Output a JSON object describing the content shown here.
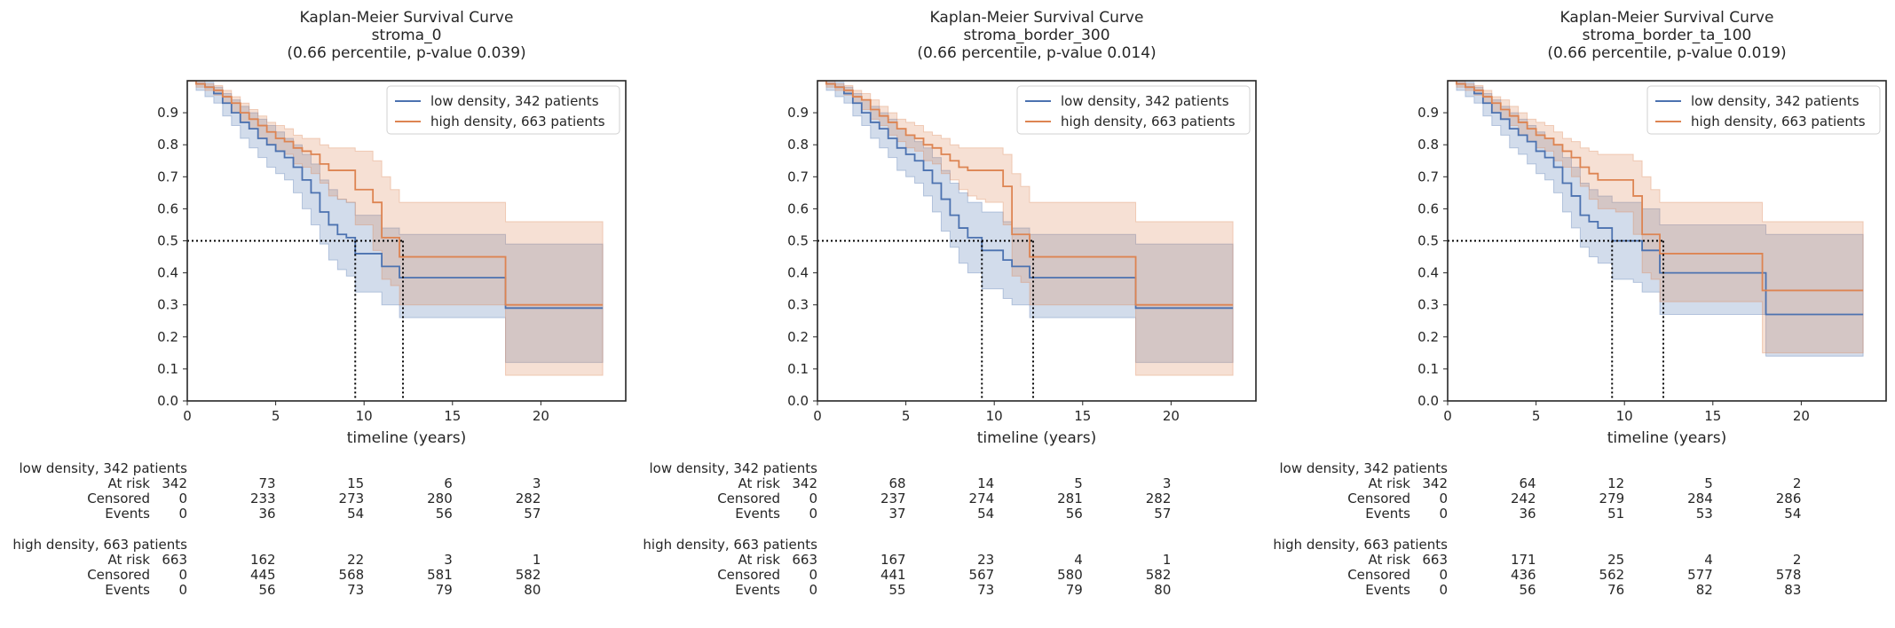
{
  "chart_data": [
    {
      "type": "line",
      "title_lines": [
        "Kaplan-Meier Survival Curve",
        "stroma_0",
        "(0.66 percentile, p-value 0.039)"
      ],
      "xlabel": "timeline (years)",
      "ylabel": "",
      "xlim": [
        0,
        24.8
      ],
      "ylim": [
        0,
        1.0
      ],
      "xticks": [
        0,
        5,
        10,
        15,
        20
      ],
      "yticks": [
        0.0,
        0.1,
        0.2,
        0.3,
        0.4,
        0.5,
        0.6,
        0.7,
        0.8,
        0.9
      ],
      "legend_position": "top-right",
      "median_lines": [
        9.5,
        12.2
      ],
      "series": [
        {
          "name": "low density, 342 patients",
          "color": "#4c72b0",
          "x": [
            0,
            0.5,
            1.0,
            1.5,
            2.0,
            2.5,
            3.0,
            3.5,
            4.0,
            4.5,
            5.0,
            5.5,
            6.0,
            6.5,
            7.0,
            7.5,
            8.0,
            8.5,
            9.0,
            9.5,
            11.0,
            12.0,
            18.0,
            23.5
          ],
          "y": [
            1.0,
            0.99,
            0.98,
            0.96,
            0.93,
            0.9,
            0.87,
            0.85,
            0.82,
            0.8,
            0.78,
            0.76,
            0.73,
            0.69,
            0.65,
            0.59,
            0.55,
            0.52,
            0.51,
            0.46,
            0.42,
            0.385,
            0.29,
            0.29
          ],
          "upper": [
            1.0,
            1.0,
            0.995,
            0.98,
            0.96,
            0.94,
            0.92,
            0.9,
            0.88,
            0.86,
            0.84,
            0.82,
            0.8,
            0.77,
            0.74,
            0.69,
            0.66,
            0.63,
            0.62,
            0.58,
            0.54,
            0.52,
            0.49,
            0.49
          ],
          "lower": [
            1.0,
            0.97,
            0.95,
            0.93,
            0.89,
            0.86,
            0.82,
            0.79,
            0.76,
            0.73,
            0.71,
            0.69,
            0.65,
            0.6,
            0.55,
            0.49,
            0.44,
            0.41,
            0.39,
            0.34,
            0.3,
            0.26,
            0.12,
            0.12
          ]
        },
        {
          "name": "high density, 663 patients",
          "color": "#dd8452",
          "x": [
            0,
            0.5,
            1.0,
            1.5,
            2.0,
            2.5,
            3.0,
            3.5,
            4.0,
            4.5,
            5.0,
            5.5,
            6.0,
            6.5,
            7.0,
            7.5,
            8.0,
            8.5,
            9.0,
            9.5,
            10.5,
            11.0,
            11.5,
            12.0,
            18.0,
            23.5
          ],
          "y": [
            1.0,
            0.99,
            0.98,
            0.97,
            0.95,
            0.93,
            0.9,
            0.88,
            0.86,
            0.84,
            0.82,
            0.81,
            0.79,
            0.78,
            0.77,
            0.74,
            0.72,
            0.72,
            0.72,
            0.66,
            0.62,
            0.51,
            0.51,
            0.45,
            0.3,
            0.3
          ],
          "upper": [
            1.0,
            1.0,
            0.99,
            0.985,
            0.97,
            0.95,
            0.93,
            0.91,
            0.89,
            0.87,
            0.86,
            0.85,
            0.83,
            0.82,
            0.82,
            0.8,
            0.79,
            0.79,
            0.79,
            0.78,
            0.75,
            0.7,
            0.66,
            0.62,
            0.56,
            0.56
          ],
          "lower": [
            1.0,
            0.98,
            0.97,
            0.955,
            0.93,
            0.9,
            0.87,
            0.85,
            0.82,
            0.8,
            0.78,
            0.77,
            0.74,
            0.73,
            0.71,
            0.68,
            0.64,
            0.63,
            0.62,
            0.55,
            0.47,
            0.38,
            0.36,
            0.3,
            0.08,
            0.08
          ]
        }
      ],
      "at_risk_table": {
        "times": [
          0,
          5,
          10,
          15,
          20
        ],
        "groups": [
          {
            "name": "low density, 342 patients",
            "rows": [
              {
                "label": "At risk",
                "values": [
                  "342",
                  "73",
                  "15",
                  "6",
                  "3"
                ]
              },
              {
                "label": "Censored",
                "values": [
                  "0",
                  "233",
                  "273",
                  "280",
                  "282"
                ]
              },
              {
                "label": "Events",
                "values": [
                  "0",
                  "36",
                  "54",
                  "56",
                  "57"
                ]
              }
            ]
          },
          {
            "name": "high density, 663 patients",
            "rows": [
              {
                "label": "At risk",
                "values": [
                  "663",
                  "162",
                  "22",
                  "3",
                  "1"
                ]
              },
              {
                "label": "Censored",
                "values": [
                  "0",
                  "445",
                  "568",
                  "581",
                  "582"
                ]
              },
              {
                "label": "Events",
                "values": [
                  "0",
                  "56",
                  "73",
                  "79",
                  "80"
                ]
              }
            ]
          }
        ]
      }
    },
    {
      "type": "line",
      "title_lines": [
        "Kaplan-Meier Survival Curve",
        "stroma_border_300",
        "(0.66 percentile, p-value 0.014)"
      ],
      "xlabel": "timeline (years)",
      "ylabel": "",
      "xlim": [
        0,
        24.8
      ],
      "ylim": [
        0,
        1.0
      ],
      "xticks": [
        0,
        5,
        10,
        15,
        20
      ],
      "yticks": [
        0.0,
        0.1,
        0.2,
        0.3,
        0.4,
        0.5,
        0.6,
        0.7,
        0.8,
        0.9
      ],
      "legend_position": "top-right",
      "median_lines": [
        9.3,
        12.2
      ],
      "series": [
        {
          "name": "low density, 342 patients",
          "color": "#4c72b0",
          "x": [
            0,
            0.5,
            1.0,
            1.5,
            2.0,
            2.5,
            3.0,
            3.5,
            4.0,
            4.5,
            5.0,
            5.5,
            6.0,
            6.5,
            7.0,
            7.5,
            8.0,
            8.5,
            9.3,
            10.5,
            11.0,
            12.0,
            18.0,
            23.5
          ],
          "y": [
            1.0,
            0.99,
            0.98,
            0.96,
            0.93,
            0.9,
            0.87,
            0.85,
            0.82,
            0.79,
            0.77,
            0.75,
            0.72,
            0.68,
            0.63,
            0.58,
            0.54,
            0.51,
            0.47,
            0.44,
            0.42,
            0.385,
            0.29,
            0.29
          ],
          "upper": [
            1.0,
            1.0,
            0.995,
            0.98,
            0.96,
            0.94,
            0.92,
            0.9,
            0.88,
            0.85,
            0.83,
            0.81,
            0.79,
            0.76,
            0.72,
            0.68,
            0.65,
            0.62,
            0.59,
            0.56,
            0.54,
            0.52,
            0.49,
            0.49
          ],
          "lower": [
            1.0,
            0.97,
            0.95,
            0.93,
            0.89,
            0.86,
            0.82,
            0.79,
            0.76,
            0.72,
            0.7,
            0.68,
            0.64,
            0.59,
            0.53,
            0.48,
            0.43,
            0.4,
            0.35,
            0.32,
            0.3,
            0.26,
            0.12,
            0.12
          ]
        },
        {
          "name": "high density, 663 patients",
          "color": "#dd8452",
          "x": [
            0,
            0.5,
            1.0,
            1.5,
            2.0,
            2.5,
            3.0,
            3.5,
            4.0,
            4.5,
            5.0,
            5.5,
            6.0,
            6.5,
            7.0,
            7.5,
            8.0,
            8.5,
            9.0,
            9.5,
            10.5,
            11.0,
            11.5,
            12.0,
            18.0,
            23.5
          ],
          "y": [
            1.0,
            0.99,
            0.98,
            0.97,
            0.95,
            0.94,
            0.91,
            0.89,
            0.87,
            0.85,
            0.83,
            0.82,
            0.8,
            0.79,
            0.77,
            0.75,
            0.73,
            0.72,
            0.72,
            0.72,
            0.67,
            0.52,
            0.52,
            0.45,
            0.3,
            0.3
          ],
          "upper": [
            1.0,
            1.0,
            0.99,
            0.985,
            0.97,
            0.96,
            0.94,
            0.92,
            0.9,
            0.88,
            0.87,
            0.86,
            0.84,
            0.83,
            0.82,
            0.8,
            0.79,
            0.79,
            0.79,
            0.79,
            0.77,
            0.71,
            0.67,
            0.62,
            0.56,
            0.56
          ],
          "lower": [
            1.0,
            0.98,
            0.97,
            0.955,
            0.93,
            0.91,
            0.88,
            0.86,
            0.83,
            0.81,
            0.79,
            0.78,
            0.75,
            0.74,
            0.71,
            0.69,
            0.66,
            0.64,
            0.63,
            0.62,
            0.55,
            0.39,
            0.37,
            0.3,
            0.08,
            0.08
          ]
        }
      ],
      "at_risk_table": {
        "times": [
          0,
          5,
          10,
          15,
          20
        ],
        "groups": [
          {
            "name": "low density, 342 patients",
            "rows": [
              {
                "label": "At risk",
                "values": [
                  "342",
                  "68",
                  "14",
                  "5",
                  "3"
                ]
              },
              {
                "label": "Censored",
                "values": [
                  "0",
                  "237",
                  "274",
                  "281",
                  "282"
                ]
              },
              {
                "label": "Events",
                "values": [
                  "0",
                  "37",
                  "54",
                  "56",
                  "57"
                ]
              }
            ]
          },
          {
            "name": "high density, 663 patients",
            "rows": [
              {
                "label": "At risk",
                "values": [
                  "663",
                  "167",
                  "23",
                  "4",
                  "1"
                ]
              },
              {
                "label": "Censored",
                "values": [
                  "0",
                  "441",
                  "567",
                  "580",
                  "582"
                ]
              },
              {
                "label": "Events",
                "values": [
                  "0",
                  "55",
                  "73",
                  "79",
                  "80"
                ]
              }
            ]
          }
        ]
      }
    },
    {
      "type": "line",
      "title_lines": [
        "Kaplan-Meier Survival Curve",
        "stroma_border_ta_100",
        "(0.66 percentile, p-value 0.019)"
      ],
      "xlabel": "timeline (years)",
      "ylabel": "",
      "xlim": [
        0,
        24.8
      ],
      "ylim": [
        0,
        1.0
      ],
      "xticks": [
        0,
        5,
        10,
        15,
        20
      ],
      "yticks": [
        0.0,
        0.1,
        0.2,
        0.3,
        0.4,
        0.5,
        0.6,
        0.7,
        0.8,
        0.9
      ],
      "legend_position": "top-right",
      "median_lines": [
        9.3,
        12.2
      ],
      "series": [
        {
          "name": "low density, 342 patients",
          "color": "#4c72b0",
          "x": [
            0,
            0.5,
            1.0,
            1.5,
            2.0,
            2.5,
            3.0,
            3.5,
            4.0,
            4.5,
            5.0,
            5.5,
            6.0,
            6.5,
            7.0,
            7.5,
            8.0,
            8.5,
            9.3,
            10.5,
            11.0,
            12.0,
            18.0,
            23.5
          ],
          "y": [
            1.0,
            0.99,
            0.98,
            0.96,
            0.93,
            0.9,
            0.88,
            0.85,
            0.83,
            0.81,
            0.78,
            0.76,
            0.73,
            0.68,
            0.64,
            0.58,
            0.56,
            0.54,
            0.5,
            0.5,
            0.47,
            0.4,
            0.27,
            0.27
          ],
          "upper": [
            1.0,
            1.0,
            0.995,
            0.98,
            0.96,
            0.94,
            0.92,
            0.9,
            0.88,
            0.86,
            0.84,
            0.82,
            0.8,
            0.76,
            0.73,
            0.68,
            0.66,
            0.64,
            0.62,
            0.62,
            0.6,
            0.55,
            0.52,
            0.52
          ],
          "lower": [
            1.0,
            0.97,
            0.95,
            0.93,
            0.89,
            0.86,
            0.83,
            0.79,
            0.77,
            0.74,
            0.71,
            0.69,
            0.65,
            0.59,
            0.54,
            0.48,
            0.45,
            0.43,
            0.38,
            0.37,
            0.34,
            0.27,
            0.14,
            0.14
          ]
        },
        {
          "name": "high density, 663 patients",
          "color": "#dd8452",
          "x": [
            0,
            0.5,
            1.0,
            1.5,
            2.0,
            2.5,
            3.0,
            3.5,
            4.0,
            4.5,
            5.0,
            5.5,
            6.0,
            6.5,
            7.0,
            7.5,
            8.0,
            8.5,
            9.0,
            9.5,
            10.5,
            11.0,
            11.5,
            12.0,
            17.8,
            23.5
          ],
          "y": [
            1.0,
            0.99,
            0.98,
            0.97,
            0.95,
            0.93,
            0.91,
            0.89,
            0.87,
            0.85,
            0.83,
            0.82,
            0.8,
            0.78,
            0.76,
            0.73,
            0.71,
            0.69,
            0.69,
            0.69,
            0.64,
            0.52,
            0.52,
            0.46,
            0.345,
            0.345
          ],
          "upper": [
            1.0,
            1.0,
            0.99,
            0.985,
            0.97,
            0.95,
            0.94,
            0.92,
            0.9,
            0.88,
            0.87,
            0.86,
            0.84,
            0.82,
            0.81,
            0.79,
            0.78,
            0.77,
            0.77,
            0.77,
            0.75,
            0.7,
            0.66,
            0.62,
            0.56,
            0.56
          ],
          "lower": [
            1.0,
            0.98,
            0.97,
            0.955,
            0.93,
            0.9,
            0.88,
            0.86,
            0.83,
            0.81,
            0.79,
            0.78,
            0.75,
            0.73,
            0.7,
            0.67,
            0.63,
            0.6,
            0.6,
            0.59,
            0.52,
            0.4,
            0.38,
            0.31,
            0.15,
            0.15
          ]
        }
      ],
      "at_risk_table": {
        "times": [
          0,
          5,
          10,
          15,
          20
        ],
        "groups": [
          {
            "name": "low density, 342 patients",
            "rows": [
              {
                "label": "At risk",
                "values": [
                  "342",
                  "64",
                  "12",
                  "5",
                  "2"
                ]
              },
              {
                "label": "Censored",
                "values": [
                  "0",
                  "242",
                  "279",
                  "284",
                  "286"
                ]
              },
              {
                "label": "Events",
                "values": [
                  "0",
                  "36",
                  "51",
                  "53",
                  "54"
                ]
              }
            ]
          },
          {
            "name": "high density, 663 patients",
            "rows": [
              {
                "label": "At risk",
                "values": [
                  "663",
                  "171",
                  "25",
                  "4",
                  "2"
                ]
              },
              {
                "label": "Censored",
                "values": [
                  "0",
                  "436",
                  "562",
                  "577",
                  "578"
                ]
              },
              {
                "label": "Events",
                "values": [
                  "0",
                  "56",
                  "76",
                  "82",
                  "83"
                ]
              }
            ]
          }
        ]
      }
    }
  ]
}
